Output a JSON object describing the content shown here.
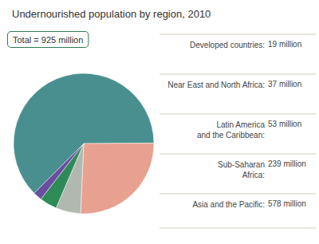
{
  "chart_data": {
    "type": "pie",
    "title": "Undernourished population by region, 2010",
    "values": [
      578,
      239,
      53,
      37,
      19
    ],
    "colors": [
      "#4a8f8f",
      "#e8a090",
      "#b0b8b0",
      "#2e8b57",
      "#6a4fa0"
    ],
    "annotations": [
      {
        "label": "Total = 925 million"
      },
      {
        "label": "Developed countries:",
        "value_label": "19 million"
      },
      {
        "label": "Near East and North Africa:",
        "value_label": "37 million"
      },
      {
        "label": "Latin America\nand the Caribbean:",
        "value_label": "53 million"
      },
      {
        "label": "Sub-Saharan\nAfrica:",
        "value_label": "239 million"
      },
      {
        "label": "Asia and the Pacific:",
        "value_label": "578 million"
      }
    ]
  }
}
